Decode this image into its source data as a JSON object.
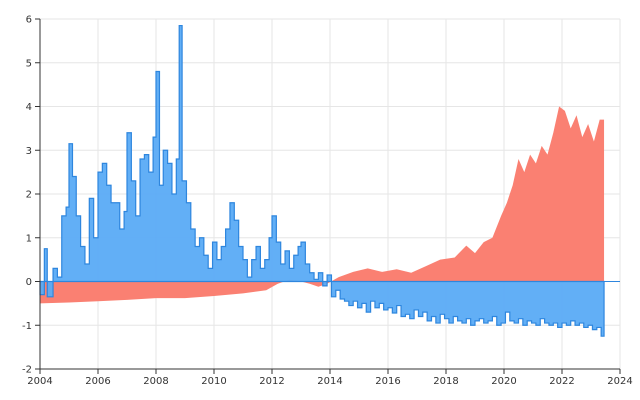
{
  "chart_data": {
    "type": "area",
    "title": "",
    "xlabel": "",
    "ylabel": "",
    "xlim": [
      2004,
      2024
    ],
    "ylim": [
      -2,
      6
    ],
    "grid": true,
    "legend": "none",
    "x_ticks": [
      "2004",
      "2006",
      "2008",
      "2010",
      "2012",
      "2014",
      "2016",
      "2018",
      "2020",
      "2022",
      "2024"
    ],
    "y_ticks": [
      "-2",
      "-1",
      "0",
      "1",
      "2",
      "3",
      "4",
      "5",
      "6"
    ],
    "series": [
      {
        "kind": "area",
        "color": "#fa8072",
        "points": [
          [
            2004.0,
            -0.5
          ],
          [
            2005.0,
            -0.48
          ],
          [
            2006.0,
            -0.45
          ],
          [
            2007.0,
            -0.42
          ],
          [
            2008.0,
            -0.38
          ],
          [
            2009.0,
            -0.38
          ],
          [
            2010.0,
            -0.33
          ],
          [
            2011.0,
            -0.27
          ],
          [
            2011.8,
            -0.2
          ],
          [
            2012.2,
            -0.05
          ],
          [
            2012.6,
            0.04
          ],
          [
            2013.0,
            0.0
          ],
          [
            2013.3,
            -0.05
          ],
          [
            2013.6,
            -0.12
          ],
          [
            2013.9,
            -0.05
          ],
          [
            2014.3,
            0.1
          ],
          [
            2014.8,
            0.22
          ],
          [
            2015.3,
            0.3
          ],
          [
            2015.8,
            0.22
          ],
          [
            2016.3,
            0.28
          ],
          [
            2016.8,
            0.2
          ],
          [
            2017.3,
            0.35
          ],
          [
            2017.8,
            0.5
          ],
          [
            2018.3,
            0.55
          ],
          [
            2018.7,
            0.82
          ],
          [
            2019.0,
            0.65
          ],
          [
            2019.3,
            0.9
          ],
          [
            2019.6,
            1.0
          ],
          [
            2019.9,
            1.5
          ],
          [
            2020.1,
            1.8
          ],
          [
            2020.3,
            2.2
          ],
          [
            2020.5,
            2.8
          ],
          [
            2020.7,
            2.5
          ],
          [
            2020.9,
            2.9
          ],
          [
            2021.1,
            2.7
          ],
          [
            2021.3,
            3.1
          ],
          [
            2021.5,
            2.9
          ],
          [
            2021.7,
            3.4
          ],
          [
            2021.9,
            4.0
          ],
          [
            2022.1,
            3.9
          ],
          [
            2022.3,
            3.5
          ],
          [
            2022.5,
            3.8
          ],
          [
            2022.7,
            3.3
          ],
          [
            2022.9,
            3.6
          ],
          [
            2023.1,
            3.2
          ],
          [
            2023.3,
            3.7
          ],
          [
            2023.45,
            3.7
          ]
        ]
      },
      {
        "kind": "step-area",
        "color": "#5aabf5",
        "points": [
          [
            2004.0,
            -0.3
          ],
          [
            2004.15,
            0.75
          ],
          [
            2004.25,
            -0.35
          ],
          [
            2004.45,
            0.3
          ],
          [
            2004.6,
            0.1
          ],
          [
            2004.75,
            1.5
          ],
          [
            2004.9,
            1.7
          ],
          [
            2005.0,
            3.15
          ],
          [
            2005.12,
            2.4
          ],
          [
            2005.25,
            1.5
          ],
          [
            2005.4,
            0.8
          ],
          [
            2005.55,
            0.4
          ],
          [
            2005.7,
            1.9
          ],
          [
            2005.85,
            1.0
          ],
          [
            2006.0,
            2.5
          ],
          [
            2006.15,
            2.7
          ],
          [
            2006.3,
            2.2
          ],
          [
            2006.45,
            1.8
          ],
          [
            2006.6,
            1.8
          ],
          [
            2006.75,
            1.2
          ],
          [
            2006.9,
            1.6
          ],
          [
            2007.0,
            3.4
          ],
          [
            2007.15,
            2.3
          ],
          [
            2007.3,
            1.5
          ],
          [
            2007.45,
            2.8
          ],
          [
            2007.6,
            2.9
          ],
          [
            2007.75,
            2.5
          ],
          [
            2007.9,
            3.3
          ],
          [
            2008.0,
            4.8
          ],
          [
            2008.12,
            2.2
          ],
          [
            2008.25,
            3.0
          ],
          [
            2008.4,
            2.7
          ],
          [
            2008.55,
            2.0
          ],
          [
            2008.7,
            2.8
          ],
          [
            2008.8,
            5.85
          ],
          [
            2008.9,
            2.3
          ],
          [
            2009.05,
            1.8
          ],
          [
            2009.2,
            1.2
          ],
          [
            2009.35,
            0.8
          ],
          [
            2009.5,
            1.0
          ],
          [
            2009.65,
            0.6
          ],
          [
            2009.8,
            0.3
          ],
          [
            2009.95,
            0.9
          ],
          [
            2010.1,
            0.5
          ],
          [
            2010.25,
            0.8
          ],
          [
            2010.4,
            1.2
          ],
          [
            2010.55,
            1.8
          ],
          [
            2010.7,
            1.4
          ],
          [
            2010.85,
            0.8
          ],
          [
            2011.0,
            0.5
          ],
          [
            2011.15,
            0.1
          ],
          [
            2011.3,
            0.5
          ],
          [
            2011.45,
            0.8
          ],
          [
            2011.6,
            0.3
          ],
          [
            2011.75,
            0.5
          ],
          [
            2011.9,
            1.0
          ],
          [
            2012.0,
            1.5
          ],
          [
            2012.15,
            0.9
          ],
          [
            2012.3,
            0.4
          ],
          [
            2012.45,
            0.7
          ],
          [
            2012.6,
            0.3
          ],
          [
            2012.75,
            0.6
          ],
          [
            2012.9,
            0.8
          ],
          [
            2013.0,
            0.9
          ],
          [
            2013.15,
            0.4
          ],
          [
            2013.3,
            0.2
          ],
          [
            2013.45,
            0.05
          ],
          [
            2013.6,
            0.2
          ],
          [
            2013.75,
            -0.1
          ],
          [
            2013.9,
            0.15
          ],
          [
            2014.05,
            -0.35
          ],
          [
            2014.2,
            -0.2
          ],
          [
            2014.35,
            -0.4
          ],
          [
            2014.5,
            -0.45
          ],
          [
            2014.65,
            -0.55
          ],
          [
            2014.8,
            -0.45
          ],
          [
            2014.95,
            -0.6
          ],
          [
            2015.1,
            -0.5
          ],
          [
            2015.25,
            -0.7
          ],
          [
            2015.4,
            -0.45
          ],
          [
            2015.55,
            -0.6
          ],
          [
            2015.7,
            -0.5
          ],
          [
            2015.85,
            -0.65
          ],
          [
            2016.0,
            -0.6
          ],
          [
            2016.15,
            -0.72
          ],
          [
            2016.3,
            -0.55
          ],
          [
            2016.45,
            -0.8
          ],
          [
            2016.6,
            -0.75
          ],
          [
            2016.75,
            -0.85
          ],
          [
            2016.9,
            -0.65
          ],
          [
            2017.05,
            -0.8
          ],
          [
            2017.2,
            -0.7
          ],
          [
            2017.35,
            -0.9
          ],
          [
            2017.5,
            -0.8
          ],
          [
            2017.65,
            -0.95
          ],
          [
            2017.8,
            -0.75
          ],
          [
            2017.95,
            -0.85
          ],
          [
            2018.1,
            -0.95
          ],
          [
            2018.25,
            -0.8
          ],
          [
            2018.4,
            -0.9
          ],
          [
            2018.55,
            -0.95
          ],
          [
            2018.7,
            -0.85
          ],
          [
            2018.85,
            -1.0
          ],
          [
            2019.0,
            -0.9
          ],
          [
            2019.15,
            -0.85
          ],
          [
            2019.3,
            -0.95
          ],
          [
            2019.45,
            -0.9
          ],
          [
            2019.6,
            -0.8
          ],
          [
            2019.75,
            -1.0
          ],
          [
            2019.9,
            -0.95
          ],
          [
            2020.05,
            -0.7
          ],
          [
            2020.2,
            -0.9
          ],
          [
            2020.35,
            -0.95
          ],
          [
            2020.5,
            -0.85
          ],
          [
            2020.65,
            -1.0
          ],
          [
            2020.8,
            -0.9
          ],
          [
            2020.95,
            -0.95
          ],
          [
            2021.1,
            -1.0
          ],
          [
            2021.25,
            -0.85
          ],
          [
            2021.4,
            -0.95
          ],
          [
            2021.55,
            -1.0
          ],
          [
            2021.7,
            -0.95
          ],
          [
            2021.85,
            -1.05
          ],
          [
            2022.0,
            -0.95
          ],
          [
            2022.15,
            -1.0
          ],
          [
            2022.3,
            -0.9
          ],
          [
            2022.45,
            -1.0
          ],
          [
            2022.6,
            -0.95
          ],
          [
            2022.75,
            -1.05
          ],
          [
            2022.9,
            -1.0
          ],
          [
            2023.05,
            -1.1
          ],
          [
            2023.2,
            -1.05
          ],
          [
            2023.35,
            -1.25
          ],
          [
            2023.45,
            -1.25
          ]
        ]
      }
    ]
  }
}
